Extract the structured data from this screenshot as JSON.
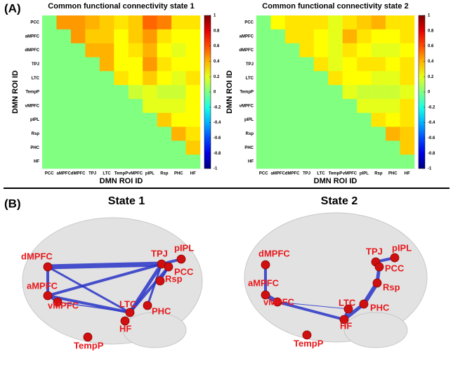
{
  "panel_labels": [
    "(A)",
    "(B)"
  ],
  "chart_data": [
    {
      "type": "heatmap",
      "title": "Common functional connectivity state 1",
      "xlabel": "DMN ROI ID",
      "ylabel": "DMN ROI ID",
      "categories": [
        "PCC",
        "aMPFC",
        "dMPFC",
        "TPJ",
        "LTC",
        "TempP",
        "vMPFC",
        "pIPL",
        "Rsp",
        "PHC",
        "HF"
      ],
      "values": [
        [
          0,
          0.45,
          0.45,
          0.4,
          0.35,
          0.3,
          0.35,
          0.55,
          0.5,
          0.3,
          0.3
        ],
        [
          0,
          0,
          0.45,
          0.35,
          0.35,
          0.25,
          0.35,
          0.45,
          0.3,
          0.25,
          0.25
        ],
        [
          0,
          0,
          0,
          0.4,
          0.4,
          0.25,
          0.3,
          0.4,
          0.25,
          0.2,
          0.25
        ],
        [
          0,
          0,
          0,
          0,
          0.4,
          0.25,
          0.25,
          0.45,
          0.3,
          0.25,
          0.25
        ],
        [
          0,
          0,
          0,
          0,
          0,
          0.3,
          0.25,
          0.35,
          0.25,
          0.2,
          0.3
        ],
        [
          0,
          0,
          0,
          0,
          0,
          0,
          0.15,
          0.2,
          0.15,
          0.15,
          0.25
        ],
        [
          0,
          0,
          0,
          0,
          0,
          0,
          0,
          0.2,
          0.2,
          0.2,
          0.25
        ],
        [
          0,
          0,
          0,
          0,
          0,
          0,
          0,
          0,
          0.35,
          0.25,
          0.25
        ],
        [
          0,
          0,
          0,
          0,
          0,
          0,
          0,
          0,
          0,
          0.4,
          0.3
        ],
        [
          0,
          0,
          0,
          0,
          0,
          0,
          0,
          0,
          0,
          0,
          0.35
        ],
        [
          0,
          0,
          0,
          0,
          0,
          0,
          0,
          0,
          0,
          0,
          0
        ]
      ],
      "clim": [
        -1,
        1
      ],
      "cticks": [
        1,
        0.8,
        0.6,
        0.4,
        0.2,
        0,
        -0.2,
        -0.4,
        -0.6,
        -0.8,
        -1
      ],
      "colormap": "jet"
    },
    {
      "type": "heatmap",
      "title": "Common functional connectivity state 2",
      "xlabel": "DMN ROI ID",
      "ylabel": "DMN ROI ID",
      "categories": [
        "PCC",
        "aMPFC",
        "dMPFC",
        "TPJ",
        "LTC",
        "TempP",
        "vMPFC",
        "pIPL",
        "Rsp",
        "PHC",
        "HF"
      ],
      "values": [
        [
          0,
          0.25,
          0.3,
          0.3,
          0.3,
          0.2,
          0.3,
          0.35,
          0.4,
          0.3,
          0.3
        ],
        [
          0,
          0,
          0.3,
          0.3,
          0.25,
          0.2,
          0.4,
          0.3,
          0.25,
          0.25,
          0.3
        ],
        [
          0,
          0,
          0,
          0.3,
          0.25,
          0.2,
          0.3,
          0.25,
          0.2,
          0.2,
          0.25
        ],
        [
          0,
          0,
          0,
          0,
          0.3,
          0.2,
          0.25,
          0.3,
          0.3,
          0.25,
          0.3
        ],
        [
          0,
          0,
          0,
          0,
          0,
          0.3,
          0.25,
          0.25,
          0.2,
          0.2,
          0.3
        ],
        [
          0,
          0,
          0,
          0,
          0,
          0,
          0.2,
          0.15,
          0.15,
          0.15,
          0.2
        ],
        [
          0,
          0,
          0,
          0,
          0,
          0,
          0,
          0.2,
          0.2,
          0.2,
          0.3
        ],
        [
          0,
          0,
          0,
          0,
          0,
          0,
          0,
          0,
          0.3,
          0.25,
          0.3
        ],
        [
          0,
          0,
          0,
          0,
          0,
          0,
          0,
          0,
          0,
          0.4,
          0.35
        ],
        [
          0,
          0,
          0,
          0,
          0,
          0,
          0,
          0,
          0,
          0,
          0.35
        ],
        [
          0,
          0,
          0,
          0,
          0,
          0,
          0,
          0,
          0,
          0,
          0
        ]
      ],
      "clim": [
        -1,
        1
      ],
      "cticks": [
        1,
        0.8,
        0.6,
        0.4,
        0.2,
        0,
        -0.2,
        -0.4,
        -0.6,
        -0.8,
        -1
      ],
      "colormap": "jet"
    }
  ],
  "networks": [
    {
      "title": "State 1",
      "nodes": [
        "dMPFC",
        "aMPFC",
        "vMPFC",
        "TPJ",
        "pIPL",
        "PCC",
        "Rsp",
        "PHC",
        "LTC",
        "HF",
        "TempP"
      ]
    },
    {
      "title": "State 2",
      "nodes": [
        "dMPFC",
        "aMPFC",
        "vMPFC",
        "TPJ",
        "pIPL",
        "PCC",
        "Rsp",
        "PHC",
        "LTC",
        "HF",
        "TempP"
      ]
    }
  ]
}
